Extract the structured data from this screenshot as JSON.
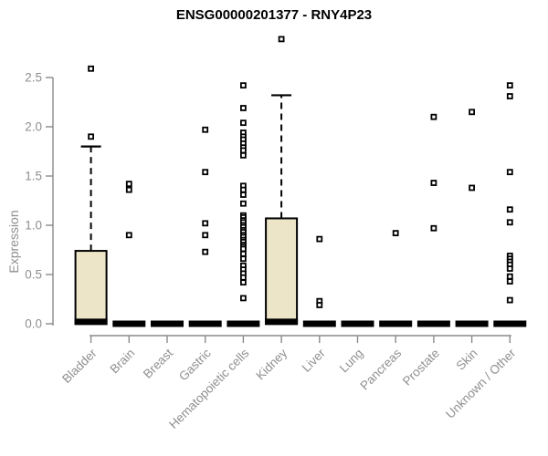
{
  "title": "ENSG00000201377 - RNY4P23",
  "chart_data": {
    "type": "boxplot",
    "title": "ENSG00000201377 - RNY4P23",
    "xlabel": "",
    "ylabel": "Expression",
    "ylim": [
      0.0,
      2.9
    ],
    "yticks": [
      "0.0",
      "0.5",
      "1.0",
      "1.5",
      "2.0",
      "2.5"
    ],
    "grid": false,
    "legend": "none",
    "categories": [
      "Bladder",
      "Brain",
      "Breast",
      "Gastric",
      "Hematopoietic cells",
      "Kidney",
      "Liver",
      "Lung",
      "Pancreas",
      "Prostate",
      "Skin",
      "Unknown / Other"
    ],
    "boxes": [
      {
        "label": "Bladder",
        "median": 0.02,
        "q1": 0.0,
        "q3": 0.74,
        "whisker_low": 0.0,
        "whisker_high": 1.8,
        "outliers": [
          2.59,
          1.9
        ]
      },
      {
        "label": "Brain",
        "median": 0.0,
        "q1": 0.0,
        "q3": 0.0,
        "whisker_low": 0.0,
        "whisker_high": 0.0,
        "outliers": [
          1.42,
          1.36,
          0.9
        ]
      },
      {
        "label": "Breast",
        "median": 0.0,
        "q1": 0.0,
        "q3": 0.0,
        "whisker_low": 0.0,
        "whisker_high": 0.0,
        "outliers": []
      },
      {
        "label": "Gastric",
        "median": 0.0,
        "q1": 0.0,
        "q3": 0.0,
        "whisker_low": 0.0,
        "whisker_high": 0.0,
        "outliers": [
          1.97,
          1.54,
          1.02,
          0.9,
          0.73
        ]
      },
      {
        "label": "Hematopoietic cells",
        "median": 0.0,
        "q1": 0.0,
        "q3": 0.0,
        "whisker_low": 0.0,
        "whisker_high": 0.0,
        "outliers": [
          2.42,
          2.19,
          2.04,
          1.94,
          1.9,
          1.87,
          1.83,
          1.79,
          1.76,
          1.71,
          1.4,
          1.36,
          1.31,
          1.22,
          1.1,
          1.08,
          1.05,
          1.03,
          1.0,
          0.98,
          0.95,
          0.93,
          0.9,
          0.88,
          0.85,
          0.83,
          0.8,
          0.78,
          0.76,
          0.71,
          0.66,
          0.59,
          0.55,
          0.51,
          0.47,
          0.42,
          0.26
        ]
      },
      {
        "label": "Kidney",
        "median": 0.02,
        "q1": 0.0,
        "q3": 1.07,
        "whisker_low": 0.0,
        "whisker_high": 2.32,
        "outliers": [
          2.89
        ]
      },
      {
        "label": "Liver",
        "median": 0.0,
        "q1": 0.0,
        "q3": 0.0,
        "whisker_low": 0.0,
        "whisker_high": 0.0,
        "outliers": [
          0.86,
          0.23,
          0.19
        ]
      },
      {
        "label": "Lung",
        "median": 0.0,
        "q1": 0.0,
        "q3": 0.0,
        "whisker_low": 0.0,
        "whisker_high": 0.0,
        "outliers": []
      },
      {
        "label": "Pancreas",
        "median": 0.0,
        "q1": 0.0,
        "q3": 0.0,
        "whisker_low": 0.0,
        "whisker_high": 0.0,
        "outliers": [
          0.92
        ]
      },
      {
        "label": "Prostate",
        "median": 0.0,
        "q1": 0.0,
        "q3": 0.0,
        "whisker_low": 0.0,
        "whisker_high": 0.0,
        "outliers": [
          2.1,
          1.43,
          0.97
        ]
      },
      {
        "label": "Skin",
        "median": 0.0,
        "q1": 0.0,
        "q3": 0.0,
        "whisker_low": 0.0,
        "whisker_high": 0.0,
        "outliers": [
          2.15,
          1.38
        ]
      },
      {
        "label": "Unknown / Other",
        "median": 0.0,
        "q1": 0.0,
        "q3": 0.0,
        "whisker_low": 0.0,
        "whisker_high": 0.0,
        "outliers": [
          2.42,
          2.31,
          1.54,
          1.16,
          1.03,
          0.69,
          0.66,
          0.63,
          0.6,
          0.56,
          0.48,
          0.43,
          0.24
        ]
      }
    ],
    "colors": {
      "box_fill": "#ece5c8",
      "box_stroke": "#000000",
      "whisker": "#000000",
      "axis": "#8a8a8a",
      "tick_label": "#8f8f8f",
      "axis_label": "#8f8f8f",
      "title": "#000000",
      "background": "#ffffff"
    }
  }
}
